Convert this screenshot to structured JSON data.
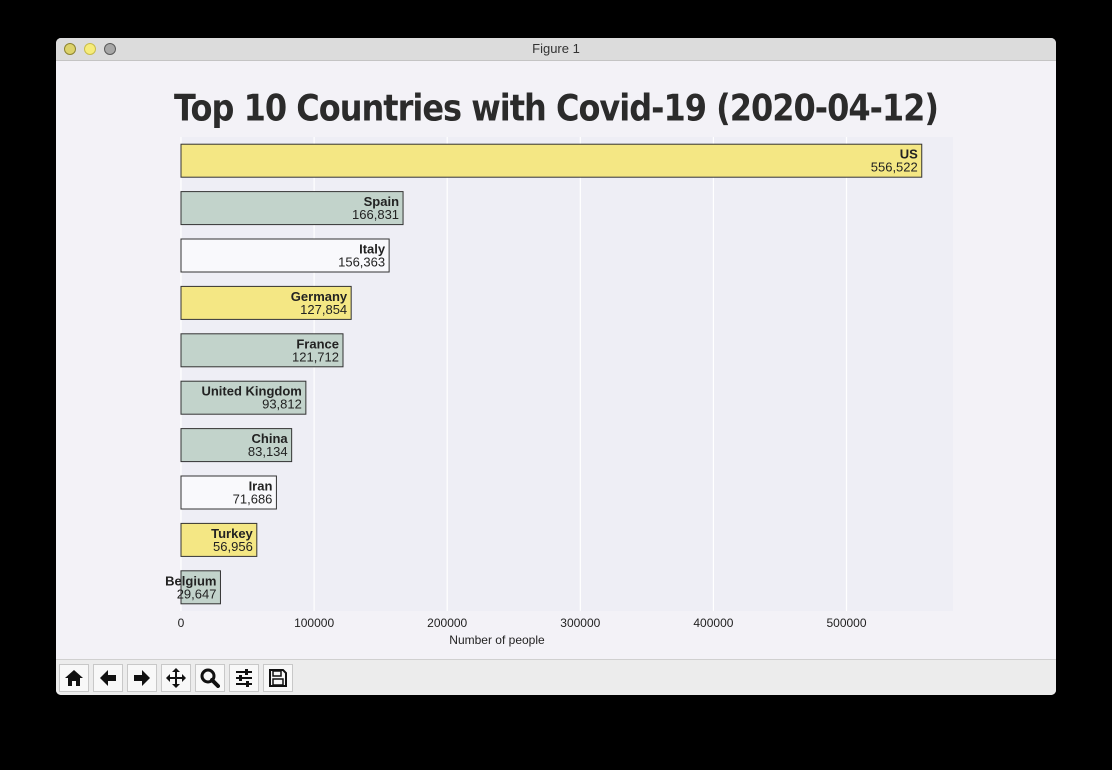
{
  "window": {
    "title": "Figure 1"
  },
  "toolbar": {
    "buttons": [
      {
        "name": "home-icon"
      },
      {
        "name": "back-arrow-icon"
      },
      {
        "name": "forward-arrow-icon"
      },
      {
        "name": "pan-move-icon"
      },
      {
        "name": "zoom-magnifier-icon"
      },
      {
        "name": "configure-subplots-icon"
      },
      {
        "name": "save-icon"
      }
    ]
  },
  "colors": {
    "yellow": "#f4e784",
    "green": "#c2d3cb",
    "white": "#f9f9fc",
    "edge": "#333333",
    "plot_bg": "#eeeef5"
  },
  "chart_data": {
    "type": "bar",
    "orientation": "horizontal",
    "title": "Top 10 Countries with Covid-19 (2020-04-12)",
    "xlabel": "Number of people",
    "ylabel": "",
    "xlim": [
      0,
      580000
    ],
    "xticks": [
      0,
      100000,
      200000,
      300000,
      400000,
      500000
    ],
    "xtick_labels": [
      "0",
      "100000",
      "200000",
      "300000",
      "400000",
      "500000"
    ],
    "grid": true,
    "categories": [
      "US",
      "Spain",
      "Italy",
      "Germany",
      "France",
      "United Kingdom",
      "China",
      "Iran",
      "Turkey",
      "Belgium"
    ],
    "values": [
      556522,
      166831,
      156363,
      127854,
      121712,
      93812,
      83134,
      71686,
      56956,
      29647
    ],
    "value_labels": [
      "556,522",
      "166,831",
      "156,363",
      "127,854",
      "121,712",
      "93,812",
      "83,134",
      "71,686",
      "56,956",
      "29,647"
    ],
    "bar_colors": [
      "#f4e784",
      "#c2d3cb",
      "#f9f9fc",
      "#f4e784",
      "#c2d3cb",
      "#c2d3cb",
      "#c2d3cb",
      "#f9f9fc",
      "#f4e784",
      "#c2d3cb"
    ]
  }
}
